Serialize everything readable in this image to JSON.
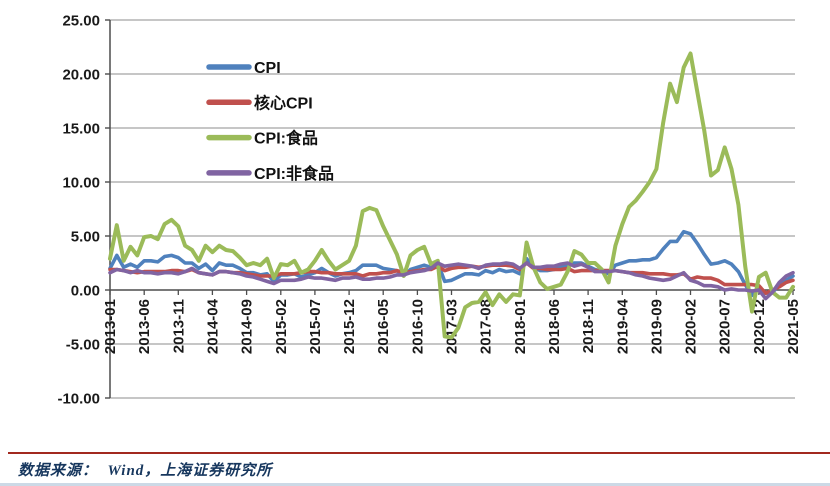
{
  "figure": {
    "source_note": "数据来源：  Wind，上海证券研究所"
  },
  "chart_data": {
    "type": "line",
    "title": "",
    "xlabel": "",
    "ylabel": "",
    "ylim": [
      -10,
      25
    ],
    "grid": true,
    "legend_position": "inside-upper-left",
    "y_ticks": [
      25,
      20,
      15,
      10,
      5,
      0,
      -5,
      -10
    ],
    "y_tick_labels": [
      "25.00",
      "20.00",
      "15.00",
      "10.00",
      "5.00",
      "0.00",
      "-5.00",
      "-10.00"
    ],
    "x_tick_every": 5,
    "x_tick_labels": [
      "2013-01",
      "2013-06",
      "2013-11",
      "2014-04",
      "2014-09",
      "2015-02",
      "2015-07",
      "2015-12",
      "2016-05",
      "2016-10",
      "2017-03",
      "2017-08",
      "2018-01",
      "2018-06",
      "2018-11",
      "2019-04",
      "2019-09",
      "2020-02",
      "2020-07",
      "2020-12",
      "2021-05"
    ],
    "categories": [
      "2013-01",
      "2013-02",
      "2013-03",
      "2013-04",
      "2013-05",
      "2013-06",
      "2013-07",
      "2013-08",
      "2013-09",
      "2013-10",
      "2013-11",
      "2013-12",
      "2014-01",
      "2014-02",
      "2014-03",
      "2014-04",
      "2014-05",
      "2014-06",
      "2014-07",
      "2014-08",
      "2014-09",
      "2014-10",
      "2014-11",
      "2014-12",
      "2015-01",
      "2015-02",
      "2015-03",
      "2015-04",
      "2015-05",
      "2015-06",
      "2015-07",
      "2015-08",
      "2015-09",
      "2015-10",
      "2015-11",
      "2015-12",
      "2016-01",
      "2016-02",
      "2016-03",
      "2016-04",
      "2016-05",
      "2016-06",
      "2016-07",
      "2016-08",
      "2016-09",
      "2016-10",
      "2016-11",
      "2016-12",
      "2017-01",
      "2017-02",
      "2017-03",
      "2017-04",
      "2017-05",
      "2017-06",
      "2017-07",
      "2017-08",
      "2017-09",
      "2017-10",
      "2017-11",
      "2017-12",
      "2018-01",
      "2018-02",
      "2018-03",
      "2018-04",
      "2018-05",
      "2018-06",
      "2018-07",
      "2018-08",
      "2018-09",
      "2018-10",
      "2018-11",
      "2018-12",
      "2019-01",
      "2019-02",
      "2019-03",
      "2019-04",
      "2019-05",
      "2019-06",
      "2019-07",
      "2019-08",
      "2019-09",
      "2019-10",
      "2019-11",
      "2019-12",
      "2020-01",
      "2020-02",
      "2020-03",
      "2020-04",
      "2020-05",
      "2020-06",
      "2020-07",
      "2020-08",
      "2020-09",
      "2020-10",
      "2020-11",
      "2020-12",
      "2021-01",
      "2021-02",
      "2021-03",
      "2021-04",
      "2021-05"
    ],
    "series": [
      {
        "id": "cpi",
        "name": "CPI",
        "color": "#4F81BD",
        "width": 3.6,
        "values": [
          2.0,
          3.2,
          2.1,
          2.4,
          2.1,
          2.7,
          2.7,
          2.6,
          3.1,
          3.2,
          3.0,
          2.5,
          2.5,
          2.0,
          2.4,
          1.8,
          2.5,
          2.3,
          2.3,
          2.0,
          1.6,
          1.6,
          1.4,
          1.5,
          0.8,
          1.4,
          1.4,
          1.5,
          1.2,
          1.4,
          1.6,
          2.0,
          1.6,
          1.3,
          1.5,
          1.6,
          1.8,
          2.3,
          2.3,
          2.3,
          2.0,
          1.9,
          1.8,
          1.3,
          1.9,
          2.1,
          2.3,
          2.1,
          2.5,
          0.8,
          0.9,
          1.2,
          1.5,
          1.5,
          1.4,
          1.8,
          1.6,
          1.9,
          1.7,
          1.8,
          1.5,
          2.9,
          2.1,
          1.8,
          1.8,
          1.9,
          2.1,
          2.3,
          2.5,
          2.5,
          2.2,
          1.9,
          1.7,
          1.5,
          2.3,
          2.5,
          2.7,
          2.7,
          2.8,
          2.8,
          3.0,
          3.8,
          4.5,
          4.5,
          5.4,
          5.2,
          4.3,
          3.3,
          2.4,
          2.5,
          2.7,
          2.4,
          1.7,
          0.5,
          -0.5,
          0.2,
          -0.3,
          -0.2,
          0.4,
          0.9,
          1.3
        ]
      },
      {
        "id": "core-cpi",
        "name": "核心CPI",
        "color": "#C0504D",
        "width": 3.6,
        "values": [
          1.9,
          1.9,
          1.8,
          1.7,
          1.6,
          1.7,
          1.7,
          1.7,
          1.7,
          1.8,
          1.8,
          1.7,
          1.9,
          1.6,
          1.5,
          1.4,
          1.7,
          1.7,
          1.6,
          1.6,
          1.5,
          1.4,
          1.3,
          1.3,
          1.3,
          1.5,
          1.5,
          1.5,
          1.6,
          1.7,
          1.7,
          1.6,
          1.6,
          1.5,
          1.5,
          1.5,
          1.5,
          1.3,
          1.5,
          1.5,
          1.6,
          1.6,
          1.8,
          1.6,
          1.7,
          1.8,
          1.9,
          1.9,
          2.2,
          1.8,
          2.0,
          2.1,
          2.1,
          2.2,
          2.1,
          2.2,
          2.3,
          2.3,
          2.3,
          2.2,
          1.9,
          2.5,
          2.0,
          2.0,
          1.9,
          1.9,
          1.9,
          2.0,
          1.7,
          1.8,
          1.8,
          1.8,
          1.8,
          1.8,
          1.8,
          1.7,
          1.6,
          1.6,
          1.6,
          1.5,
          1.5,
          1.5,
          1.4,
          1.4,
          1.5,
          1.0,
          1.2,
          1.1,
          1.1,
          0.9,
          0.5,
          0.5,
          0.5,
          0.5,
          0.5,
          0.4,
          -0.3,
          0.0,
          0.3,
          0.7,
          0.9
        ]
      },
      {
        "id": "cpi-food",
        "name": "CPI:食品",
        "color": "#9BBB59",
        "width": 4.0,
        "values": [
          2.9,
          6.0,
          2.7,
          4.0,
          3.2,
          4.9,
          5.0,
          4.7,
          6.1,
          6.5,
          5.9,
          4.1,
          3.7,
          2.7,
          4.1,
          3.5,
          4.1,
          3.7,
          3.6,
          3.0,
          2.3,
          2.5,
          2.3,
          2.9,
          1.1,
          2.4,
          2.3,
          2.7,
          1.6,
          1.9,
          2.7,
          3.7,
          2.7,
          1.9,
          2.3,
          2.7,
          4.1,
          7.3,
          7.6,
          7.4,
          5.9,
          4.6,
          3.3,
          1.3,
          3.2,
          3.7,
          4.0,
          2.4,
          2.7,
          -4.3,
          -4.4,
          -3.5,
          -1.6,
          -1.2,
          -1.1,
          -0.2,
          -1.4,
          -0.4,
          -1.1,
          -0.4,
          -0.5,
          4.4,
          2.1,
          0.7,
          0.1,
          0.3,
          0.5,
          1.7,
          3.6,
          3.3,
          2.5,
          2.5,
          1.9,
          0.7,
          4.1,
          6.1,
          7.7,
          8.3,
          9.1,
          10.0,
          11.2,
          15.5,
          19.1,
          17.4,
          20.6,
          21.9,
          18.3,
          14.8,
          10.6,
          11.1,
          13.2,
          11.2,
          7.9,
          2.2,
          -2.0,
          1.2,
          1.6,
          -0.2,
          -0.7,
          -0.7,
          0.3
        ]
      },
      {
        "id": "cpi-non-food",
        "name": "CPI:非食品",
        "color": "#8064A2",
        "width": 3.6,
        "values": [
          1.6,
          1.9,
          1.8,
          1.6,
          1.8,
          1.6,
          1.6,
          1.5,
          1.6,
          1.6,
          1.5,
          1.7,
          2.0,
          1.6,
          1.5,
          1.4,
          1.7,
          1.7,
          1.6,
          1.5,
          1.3,
          1.2,
          1.0,
          0.8,
          0.6,
          0.9,
          0.9,
          0.9,
          1.0,
          1.2,
          1.1,
          1.1,
          1.0,
          0.9,
          1.1,
          1.1,
          1.2,
          1.0,
          1.0,
          1.1,
          1.1,
          1.2,
          1.4,
          1.4,
          1.6,
          1.7,
          1.8,
          2.0,
          2.5,
          2.2,
          2.3,
          2.4,
          2.3,
          2.2,
          2.0,
          2.3,
          2.4,
          2.4,
          2.5,
          2.4,
          2.0,
          2.5,
          2.1,
          2.1,
          2.2,
          2.2,
          2.4,
          2.5,
          2.2,
          2.4,
          2.1,
          1.7,
          1.7,
          1.7,
          1.8,
          1.7,
          1.6,
          1.4,
          1.3,
          1.1,
          1.0,
          0.9,
          1.0,
          1.3,
          1.6,
          0.9,
          0.7,
          0.4,
          0.4,
          0.3,
          0.0,
          0.1,
          0.0,
          0.0,
          -0.1,
          0.0,
          -0.8,
          -0.2,
          0.7,
          1.3,
          1.6
        ]
      }
    ],
    "colors": {
      "gridline": "#8c8c8c",
      "axis": "#4d4d4d",
      "footer_rule": "#a2291f",
      "footer_text": "#17375e"
    }
  }
}
